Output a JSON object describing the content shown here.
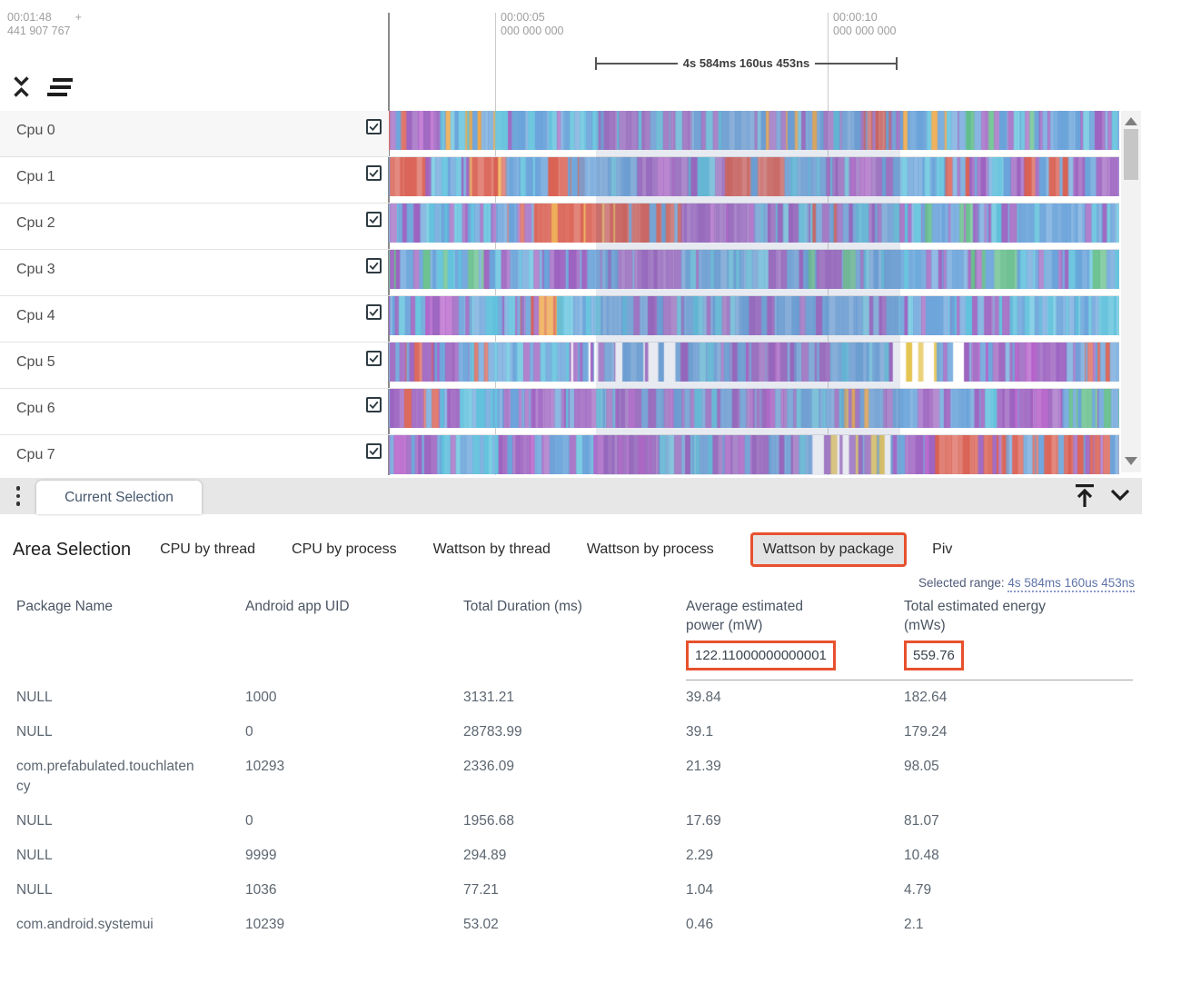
{
  "colors": {
    "accent_highlight": "#e8512e",
    "selection_overlay": "rgba(110,125,165,0.16)",
    "palette": {
      "B": "#6aa3da",
      "C": "#5fc0dc",
      "P": "#9c63c0",
      "M": "#b45fc9",
      "R": "#d96053",
      "O": "#eda647",
      "G": "#63bd8a",
      "Y": "#e5c44f",
      "L": "#8f9fd8",
      "W": "#ffffff"
    }
  },
  "timeline": {
    "cursor_time": "00:01:48",
    "cursor_plus": "+",
    "cursor_ns": "441 907 767",
    "ticks": [
      {
        "time": "00:00:05",
        "ns": "000 000 000"
      },
      {
        "time": "00:00:10",
        "ns": "000 000 000"
      }
    ],
    "range_label": "4s 584ms 160us 453ns"
  },
  "tracks": {
    "rows": [
      {
        "label": "Cpu 0",
        "checked": true,
        "seed": 11,
        "blocks": [
          [
            0.04,
            "CBGPR"
          ],
          [
            0.03,
            "PPPM"
          ],
          [
            0.04,
            "OOBC"
          ],
          [
            0.1,
            "BCBPO"
          ],
          [
            0.08,
            "BBBCP"
          ],
          [
            0.12,
            "BBCPP"
          ],
          [
            0.1,
            "BBBPC"
          ],
          [
            0.08,
            "BOPBC"
          ],
          [
            0.06,
            "BBPC"
          ],
          [
            0.05,
            "RRBP"
          ],
          [
            0.09,
            "BCOBP"
          ],
          [
            0.1,
            "BBCPG"
          ],
          [
            0.11,
            "BCPBB"
          ]
        ]
      },
      {
        "label": "Cpu 1",
        "checked": true,
        "seed": 23,
        "blocks": [
          [
            0.05,
            "RRRB"
          ],
          [
            0.06,
            "BBCP"
          ],
          [
            0.05,
            "RRRO"
          ],
          [
            0.04,
            "BBC"
          ],
          [
            0.06,
            "RRBB"
          ],
          [
            0.08,
            "BBBC"
          ],
          [
            0.07,
            "PPPM"
          ],
          [
            0.05,
            "BPC"
          ],
          [
            0.09,
            "RRRB"
          ],
          [
            0.08,
            "BCBP"
          ],
          [
            0.06,
            "PPBM"
          ],
          [
            0.07,
            "BBC"
          ],
          [
            0.06,
            "PPRB"
          ],
          [
            0.05,
            "BBPC"
          ],
          [
            0.07,
            "BBPR"
          ],
          [
            0.06,
            "PPPB"
          ]
        ]
      },
      {
        "label": "Cpu 2",
        "checked": true,
        "seed": 37,
        "blocks": [
          [
            0.08,
            "BBCP"
          ],
          [
            0.06,
            "BBPC"
          ],
          [
            0.06,
            "PRBB"
          ],
          [
            0.12,
            "RRRO"
          ],
          [
            0.08,
            "RRPB"
          ],
          [
            0.1,
            "PPPM"
          ],
          [
            0.08,
            "BBPC"
          ],
          [
            0.06,
            "RBPB"
          ],
          [
            0.09,
            "BBCP"
          ],
          [
            0.07,
            "BBPG"
          ],
          [
            0.06,
            "PPBC"
          ],
          [
            0.08,
            "BBCB"
          ],
          [
            0.06,
            "BPCB"
          ]
        ]
      },
      {
        "label": "Cpu 3",
        "checked": true,
        "seed": 41,
        "blocks": [
          [
            0.06,
            "BGPB"
          ],
          [
            0.07,
            "BBGC"
          ],
          [
            0.08,
            "BBPC"
          ],
          [
            0.09,
            "PPBB"
          ],
          [
            0.1,
            "PPPB"
          ],
          [
            0.08,
            "BBCP"
          ],
          [
            0.09,
            "BBPC"
          ],
          [
            0.08,
            "PBBG"
          ],
          [
            0.07,
            "BBCB"
          ],
          [
            0.08,
            "BGPB"
          ],
          [
            0.06,
            "GGBP"
          ],
          [
            0.08,
            "BBPC"
          ],
          [
            0.06,
            "BCGB"
          ]
        ]
      },
      {
        "label": "Cpu 4",
        "checked": true,
        "seed": 53,
        "blocks": [
          [
            0.05,
            "BBPC"
          ],
          [
            0.06,
            "PPBM"
          ],
          [
            0.07,
            "BBCP"
          ],
          [
            0.05,
            "RBPO"
          ],
          [
            0.09,
            "BBBC"
          ],
          [
            0.08,
            "BPPC"
          ],
          [
            0.09,
            "BBCP"
          ],
          [
            0.07,
            "PPBB"
          ],
          [
            0.08,
            "BBBP"
          ],
          [
            0.06,
            "PBCB"
          ],
          [
            0.07,
            "BBPC"
          ],
          [
            0.08,
            "PPBC"
          ],
          [
            0.09,
            "CCBB"
          ],
          [
            0.06,
            "BCCB"
          ]
        ]
      },
      {
        "label": "Cpu 5",
        "checked": true,
        "seed": 67,
        "blocks": [
          [
            0.06,
            "RRBP"
          ],
          [
            0.05,
            "PPMB"
          ],
          [
            0.06,
            "BBCR"
          ],
          [
            0.08,
            "BBCP"
          ],
          [
            0.07,
            "BWPW"
          ],
          [
            0.08,
            "WBWP"
          ],
          [
            0.07,
            "BBPC"
          ],
          [
            0.08,
            "PPBM"
          ],
          [
            0.07,
            "BBCP"
          ],
          [
            0.07,
            "BPBC"
          ],
          [
            0.06,
            "WBWY"
          ],
          [
            0.05,
            "PPWB"
          ],
          [
            0.08,
            "PPMB"
          ],
          [
            0.06,
            "PBPM"
          ],
          [
            0.06,
            "RPBB"
          ]
        ]
      },
      {
        "label": "Cpu 6",
        "checked": true,
        "seed": 79,
        "blocks": [
          [
            0.07,
            "PPBR"
          ],
          [
            0.08,
            "BBPC"
          ],
          [
            0.09,
            "PPPB"
          ],
          [
            0.07,
            "BPBC"
          ],
          [
            0.08,
            "PPMB"
          ],
          [
            0.08,
            "BBPC"
          ],
          [
            0.07,
            "PBPM"
          ],
          [
            0.08,
            "BBCP"
          ],
          [
            0.06,
            "OBPB"
          ],
          [
            0.08,
            "PPBB"
          ],
          [
            0.08,
            "BPCB"
          ],
          [
            0.08,
            "PPBM"
          ],
          [
            0.08,
            "BBPG"
          ]
        ]
      },
      {
        "label": "Cpu 7",
        "checked": true,
        "seed": 97,
        "blocks": [
          [
            0.07,
            "PPMB"
          ],
          [
            0.08,
            "BBPC"
          ],
          [
            0.07,
            "PPBM"
          ],
          [
            0.06,
            "BBCP"
          ],
          [
            0.09,
            "PPPM"
          ],
          [
            0.08,
            "BBPC"
          ],
          [
            0.07,
            "PPMB"
          ],
          [
            0.06,
            "BCBP"
          ],
          [
            0.05,
            "WYPW"
          ],
          [
            0.06,
            "PWYB"
          ],
          [
            0.05,
            "PPBM"
          ],
          [
            0.1,
            "RRRP"
          ],
          [
            0.09,
            "RRBR"
          ],
          [
            0.07,
            "RBPP"
          ]
        ]
      }
    ]
  },
  "tabbar": {
    "active_tab": "Current Selection"
  },
  "detail": {
    "title": "Area Selection",
    "tabs": [
      "CPU by thread",
      "CPU by process",
      "Wattson by thread",
      "Wattson by process",
      "Wattson by package",
      "Piv"
    ],
    "active_tab": "Wattson by package",
    "selected_range_label": "Selected range:",
    "selected_range_value": "4s 584ms 160us 453ns"
  },
  "table": {
    "columns": [
      "Package Name",
      "Android app UID",
      "Total Duration (ms)",
      "Average estimated power (mW)",
      "Total estimated energy (mWs)"
    ],
    "summary": {
      "avg_power": "122.11000000000001",
      "total_energy": "559.76"
    },
    "rows": [
      [
        "NULL",
        "1000",
        "3131.21",
        "39.84",
        "182.64"
      ],
      [
        "NULL",
        "0",
        "28783.99",
        "39.1",
        "179.24"
      ],
      [
        "com.prefabulated.touchlatency",
        "10293",
        "2336.09",
        "21.39",
        "98.05"
      ],
      [
        "NULL",
        "0",
        "1956.68",
        "17.69",
        "81.07"
      ],
      [
        "NULL",
        "9999",
        "294.89",
        "2.29",
        "10.48"
      ],
      [
        "NULL",
        "1036",
        "77.21",
        "1.04",
        "4.79"
      ],
      [
        "com.android.systemui",
        "10239",
        "53.02",
        "0.46",
        "2.1"
      ]
    ]
  }
}
